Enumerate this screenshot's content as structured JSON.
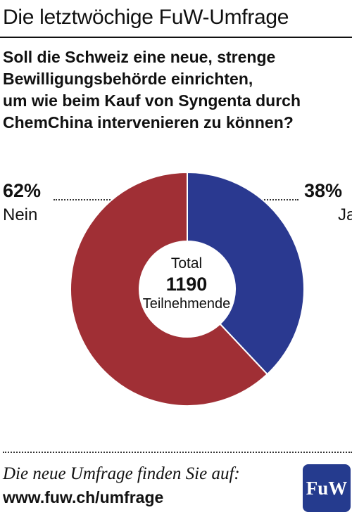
{
  "header": {
    "title": "Die letztwöchige FuW-Umfrage"
  },
  "question": {
    "lines": [
      "Soll die Schweiz eine neue, strenge",
      "Bewilligungsbehörde einrichten,",
      "um wie beim Kauf von Syngenta durch",
      "ChemChina intervenieren zu können?"
    ]
  },
  "chart_data": {
    "type": "pie",
    "donut": true,
    "slices": [
      {
        "label": "Ja",
        "value": 38,
        "value_label": "38%",
        "color": "#2a3990"
      },
      {
        "label": "Nein",
        "value": 62,
        "value_label": "62%",
        "color": "#a02f35"
      }
    ],
    "center": {
      "line1": "Total",
      "total": "1190",
      "line3": "Teilnehmende"
    }
  },
  "footer": {
    "text": "Die neue Umfrage finden Sie auf:",
    "link": "www.fuw.ch/umfrage",
    "logo_text": "FuW",
    "logo_color": "#253b8e"
  }
}
